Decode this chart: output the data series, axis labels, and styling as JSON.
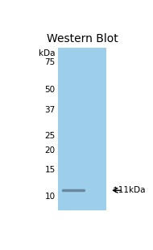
{
  "title": "Western Blot",
  "title_fontsize": 10,
  "title_fontweight": "normal",
  "background_color": "#ffffff",
  "blot_bg_color": "#9ecfea",
  "kda_labels": [
    75,
    50,
    37,
    25,
    20,
    15,
    10
  ],
  "label_fontsize": 7.5,
  "band_color": "#6888a0",
  "band_linewidth": 2.5,
  "arrow_label": "↑11kDa",
  "arrow_fontsize": 7.5,
  "log_min": 0.90309,
  "log_max": 1.954
}
